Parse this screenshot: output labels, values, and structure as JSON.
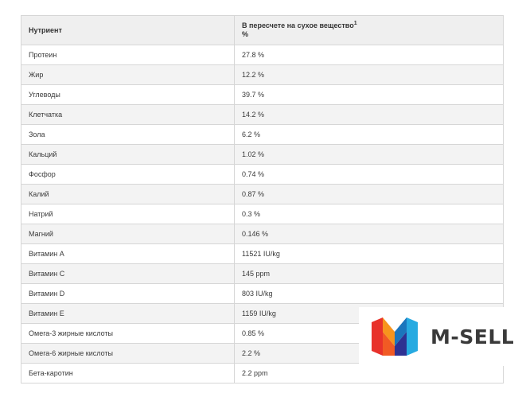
{
  "table": {
    "header": {
      "col1": "Нутриент",
      "col2_line1": "В пересчете на сухое вещество",
      "col2_sup": "1",
      "col2_line2": "%"
    },
    "rows": [
      {
        "name": "Протеин",
        "value": "27.8 %"
      },
      {
        "name": "Жир",
        "value": "12.2 %"
      },
      {
        "name": "Углеводы",
        "value": "39.7 %"
      },
      {
        "name": "Клетчатка",
        "value": "14.2 %"
      },
      {
        "name": "Зола",
        "value": "6.2 %"
      },
      {
        "name": "Кальций",
        "value": "1.02 %"
      },
      {
        "name": "Фосфор",
        "value": "0.74 %"
      },
      {
        "name": "Калий",
        "value": "0.87 %"
      },
      {
        "name": "Натрий",
        "value": "0.3 %"
      },
      {
        "name": "Магний",
        "value": "0.146 %"
      },
      {
        "name": "Витамин А",
        "value": "11521 IU/kg"
      },
      {
        "name": "Витамин С",
        "value": "145 ppm"
      },
      {
        "name": "Витамин D",
        "value": "803 IU/kg"
      },
      {
        "name": "Витамин Е",
        "value": "1159 IU/kg"
      },
      {
        "name": "Омега-3 жирные кислоты",
        "value": "0.85 %"
      },
      {
        "name": "Омега-6 жирные кислоты",
        "value": "2.2 %"
      },
      {
        "name": "Бета-каротин",
        "value": "2.2 ppm"
      }
    ]
  },
  "watermark": {
    "text": "M-SELL",
    "icon": "m-sell-logo-icon",
    "colors": {
      "text": "#3a3a3a",
      "logo_red": "#e8322b",
      "logo_orange": "#f7941d",
      "logo_blue": "#1b75bc",
      "logo_cyan": "#27aae1"
    }
  }
}
